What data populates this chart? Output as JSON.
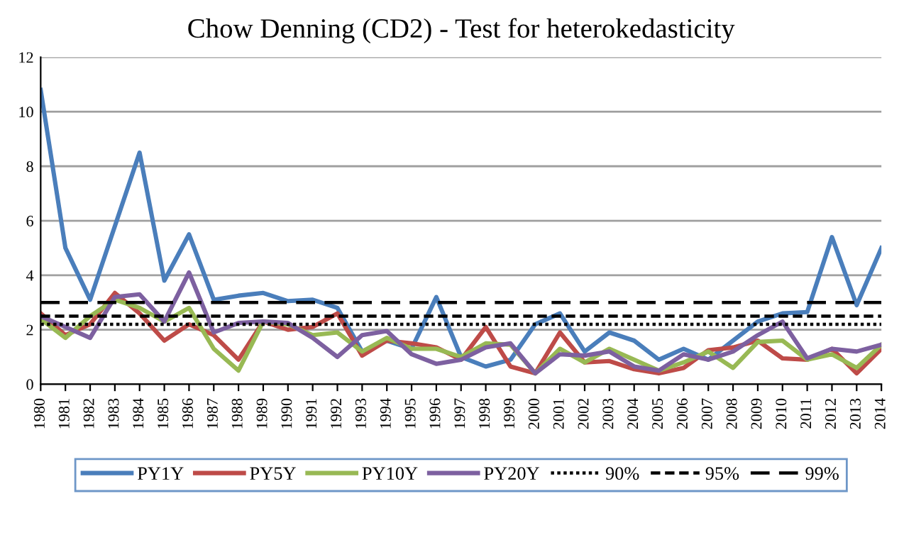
{
  "chart_data": {
    "type": "line",
    "title": "Chow Denning (CD2) - Test for heterokedasticity",
    "categories": [
      "1980",
      "1981",
      "1982",
      "1983",
      "1984",
      "1985",
      "1986",
      "1987",
      "1988",
      "1989",
      "1990",
      "1991",
      "1992",
      "1993",
      "1994",
      "1995",
      "1996",
      "1997",
      "1998",
      "1999",
      "2000",
      "2001",
      "2002",
      "2003",
      "2004",
      "2005",
      "2006",
      "2007",
      "2008",
      "2009",
      "2010",
      "2011",
      "2012",
      "2013",
      "2014"
    ],
    "series": [
      {
        "name": "PY1Y",
        "color": "#4a7ebb",
        "values": [
          10.8,
          5.0,
          3.1,
          5.8,
          8.5,
          3.8,
          5.5,
          3.1,
          3.25,
          3.35,
          3.05,
          3.1,
          2.8,
          1.2,
          1.6,
          1.3,
          3.2,
          1.0,
          0.65,
          0.9,
          2.2,
          2.6,
          1.2,
          1.9,
          1.6,
          0.9,
          1.3,
          0.9,
          1.6,
          2.3,
          2.6,
          2.65,
          5.4,
          2.9,
          5.0
        ]
      },
      {
        "name": "PY5Y",
        "color": "#be4b48",
        "values": [
          2.6,
          1.8,
          2.2,
          3.35,
          2.6,
          1.6,
          2.2,
          1.8,
          0.9,
          2.3,
          2.0,
          2.1,
          2.6,
          1.05,
          1.6,
          1.5,
          1.35,
          0.9,
          2.1,
          0.65,
          0.4,
          1.9,
          0.8,
          0.85,
          0.55,
          0.4,
          0.6,
          1.25,
          1.35,
          1.6,
          0.95,
          0.9,
          1.3,
          0.4,
          1.3
        ]
      },
      {
        "name": "PY10Y",
        "color": "#98b954",
        "values": [
          2.4,
          1.7,
          2.5,
          3.1,
          2.8,
          2.3,
          2.8,
          1.3,
          0.5,
          2.3,
          2.2,
          1.8,
          1.9,
          1.2,
          1.7,
          1.3,
          1.3,
          1.0,
          1.5,
          1.45,
          0.4,
          1.3,
          0.8,
          1.3,
          0.9,
          0.5,
          0.8,
          1.2,
          0.6,
          1.55,
          1.6,
          0.9,
          1.1,
          0.6,
          1.45
        ]
      },
      {
        "name": "PY20Y",
        "color": "#7d60a0",
        "values": [
          2.5,
          2.1,
          1.7,
          3.2,
          3.3,
          2.3,
          4.1,
          1.9,
          2.25,
          2.3,
          2.25,
          1.7,
          1.0,
          1.8,
          1.95,
          1.1,
          0.75,
          0.9,
          1.35,
          1.5,
          0.4,
          1.1,
          1.05,
          1.2,
          0.65,
          0.5,
          1.1,
          0.9,
          1.2,
          1.8,
          2.3,
          0.95,
          1.3,
          1.2,
          1.45
        ]
      },
      {
        "name": "90%",
        "color": "#000000",
        "line_style": "dotted",
        "values": [
          2.2,
          2.2,
          2.2,
          2.2,
          2.2,
          2.2,
          2.2,
          2.2,
          2.2,
          2.2,
          2.2,
          2.2,
          2.2,
          2.2,
          2.2,
          2.2,
          2.2,
          2.2,
          2.2,
          2.2,
          2.2,
          2.2,
          2.2,
          2.2,
          2.2,
          2.2,
          2.2,
          2.2,
          2.2,
          2.2,
          2.2,
          2.2,
          2.2,
          2.2,
          2.2
        ]
      },
      {
        "name": "95%",
        "color": "#000000",
        "line_style": "dashed",
        "values": [
          2.5,
          2.5,
          2.5,
          2.5,
          2.5,
          2.5,
          2.5,
          2.5,
          2.5,
          2.5,
          2.5,
          2.5,
          2.5,
          2.5,
          2.5,
          2.5,
          2.5,
          2.5,
          2.5,
          2.5,
          2.5,
          2.5,
          2.5,
          2.5,
          2.5,
          2.5,
          2.5,
          2.5,
          2.5,
          2.5,
          2.5,
          2.5,
          2.5,
          2.5,
          2.5
        ]
      },
      {
        "name": "99%",
        "color": "#000000",
        "line_style": "dashed",
        "values": [
          3.0,
          3.0,
          3.0,
          3.0,
          3.0,
          3.0,
          3.0,
          3.0,
          3.0,
          3.0,
          3.0,
          3.0,
          3.0,
          3.0,
          3.0,
          3.0,
          3.0,
          3.0,
          3.0,
          3.0,
          3.0,
          3.0,
          3.0,
          3.0,
          3.0,
          3.0,
          3.0,
          3.0,
          3.0,
          3.0,
          3.0,
          3.0,
          3.0,
          3.0,
          3.0
        ]
      }
    ],
    "ylim": [
      0,
      12
    ],
    "yticks": [
      0,
      2,
      4,
      6,
      8,
      10,
      12
    ],
    "grid": "y",
    "legend": "bottom"
  }
}
